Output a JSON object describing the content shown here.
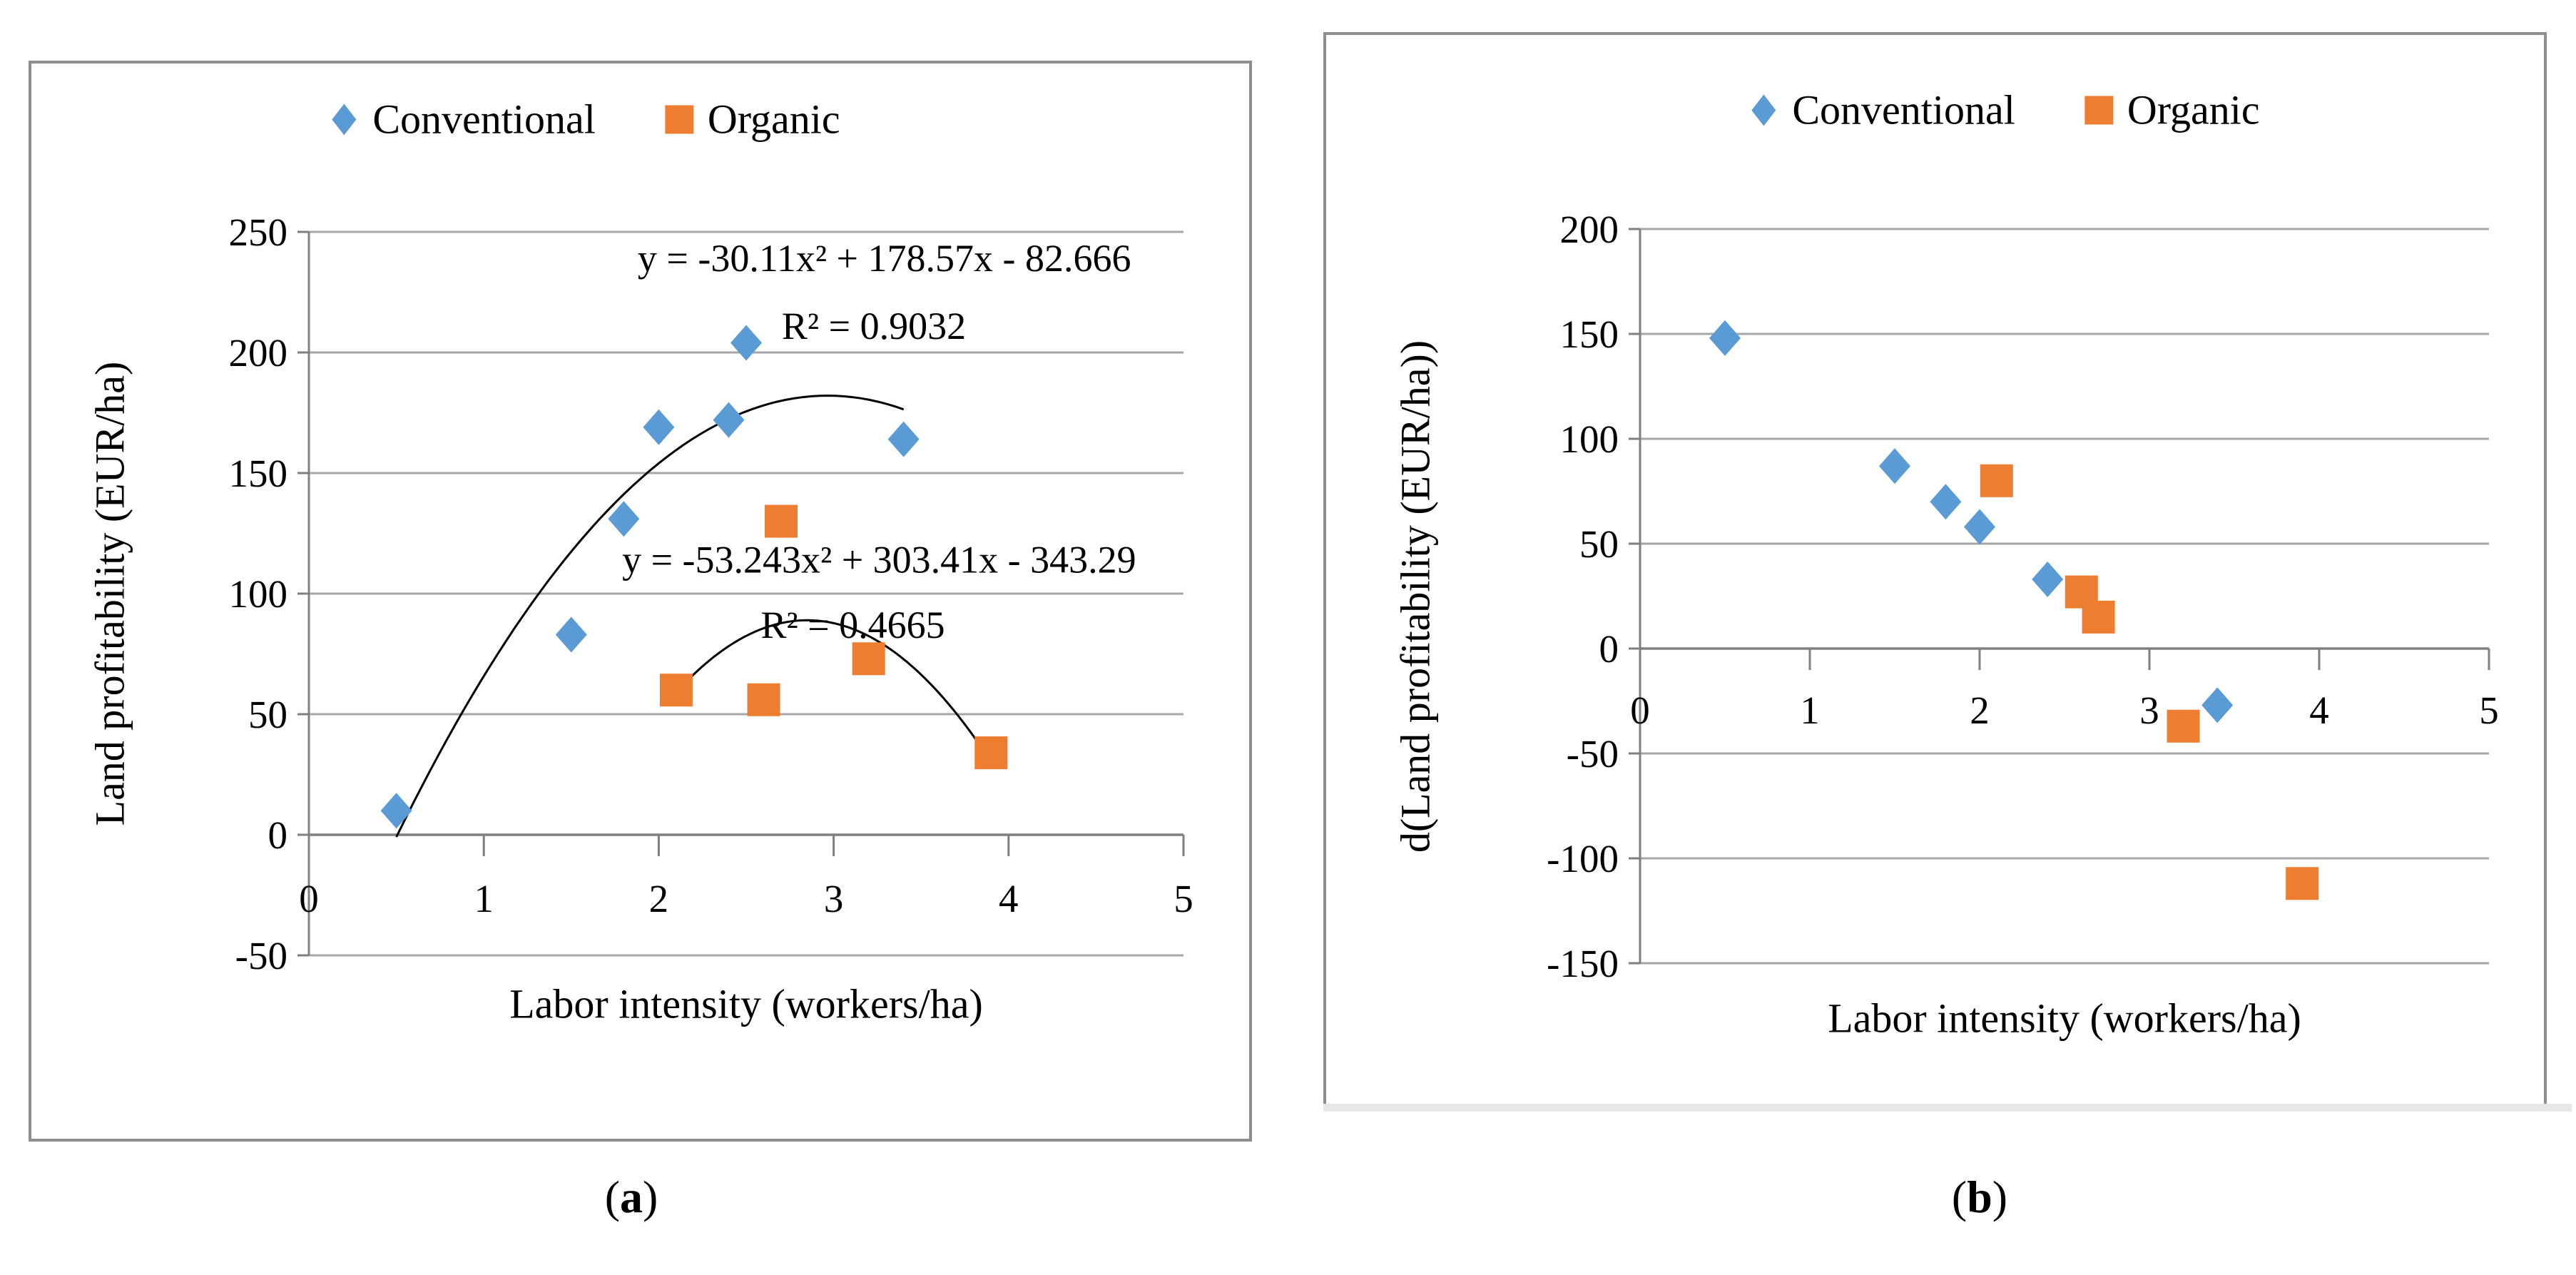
{
  "colors": {
    "conventional": "#5B9BD5",
    "organic": "#ED7D31",
    "gridline": "#a6a6a6",
    "axis": "#7f7f7f",
    "trendline": "#000000",
    "panel_border": "#8e8e8e"
  },
  "chart_data": [
    {
      "type": "scatter",
      "caption": {
        "open": "(",
        "letter": "a",
        "close": ")"
      },
      "xlabel": "Labor intensity (workers/ha)",
      "ylabel": "Land profitability (EUR/ha)",
      "xlim": [
        0,
        5
      ],
      "ylim": [
        -50,
        250
      ],
      "xticks": [
        0,
        1,
        2,
        3,
        4,
        5
      ],
      "yticks": [
        250,
        200,
        150,
        100,
        50,
        0,
        -50
      ],
      "grid": "horizontal",
      "legend_position": "top-center",
      "series": [
        {
          "name": "Conventional",
          "marker": "diamond",
          "color": "#5B9BD5",
          "points": [
            [
              0.5,
              10
            ],
            [
              1.5,
              83
            ],
            [
              1.8,
              131
            ],
            [
              2.0,
              169
            ],
            [
              2.4,
              172
            ],
            [
              2.5,
              204
            ],
            [
              3.4,
              164
            ]
          ],
          "trendline": {
            "type": "poly2",
            "coeffs": [
              -30.11,
              178.57,
              -82.666
            ],
            "range": [
              0.5,
              3.4
            ],
            "equation_text": "y = -30.11x² + 178.57x - 82.666",
            "r2_text": "R² = 0.9032",
            "equation_label_pos": {
              "x": 3.29,
              "y": 239
            },
            "r2_label_pos": {
              "x": 3.23,
              "y": 211
            }
          }
        },
        {
          "name": "Organic",
          "marker": "square",
          "color": "#ED7D31",
          "points": [
            [
              2.1,
              60
            ],
            [
              2.6,
              56
            ],
            [
              2.7,
              130
            ],
            [
              3.2,
              73
            ],
            [
              3.9,
              34
            ]
          ],
          "trendline": {
            "type": "poly2",
            "coeffs": [
              -53.243,
              303.41,
              -343.29
            ],
            "range": [
              2.1,
              3.9
            ],
            "equation_text": "y = -53.243x² + 303.41x - 343.29",
            "r2_text": "R² = 0.4665",
            "equation_label_pos": {
              "x": 3.26,
              "y": 114
            },
            "r2_label_pos": {
              "x": 3.11,
              "y": 87
            }
          }
        }
      ]
    },
    {
      "type": "scatter",
      "caption": {
        "open": "(",
        "letter": "b",
        "close": ")"
      },
      "xlabel": "Labor intensity (workers/ha)",
      "ylabel": "d(Land profitability (EUR/ha))",
      "xlim": [
        0,
        5
      ],
      "ylim": [
        -150,
        200
      ],
      "xticks": [
        0,
        1,
        2,
        3,
        4,
        5
      ],
      "yticks": [
        200,
        150,
        100,
        50,
        0,
        -50,
        -100,
        -150
      ],
      "grid": "horizontal",
      "legend_position": "top-center",
      "series": [
        {
          "name": "Conventional",
          "marker": "diamond",
          "color": "#5B9BD5",
          "points": [
            [
              0.5,
              148
            ],
            [
              1.5,
              87
            ],
            [
              1.8,
              70
            ],
            [
              2.0,
              58
            ],
            [
              2.4,
              33
            ],
            [
              3.4,
              -27
            ]
          ]
        },
        {
          "name": "Organic",
          "marker": "square",
          "color": "#ED7D31",
          "points": [
            [
              2.1,
              80
            ],
            [
              2.6,
              27
            ],
            [
              2.7,
              15
            ],
            [
              3.2,
              -37
            ],
            [
              3.9,
              -112
            ]
          ]
        }
      ]
    }
  ]
}
